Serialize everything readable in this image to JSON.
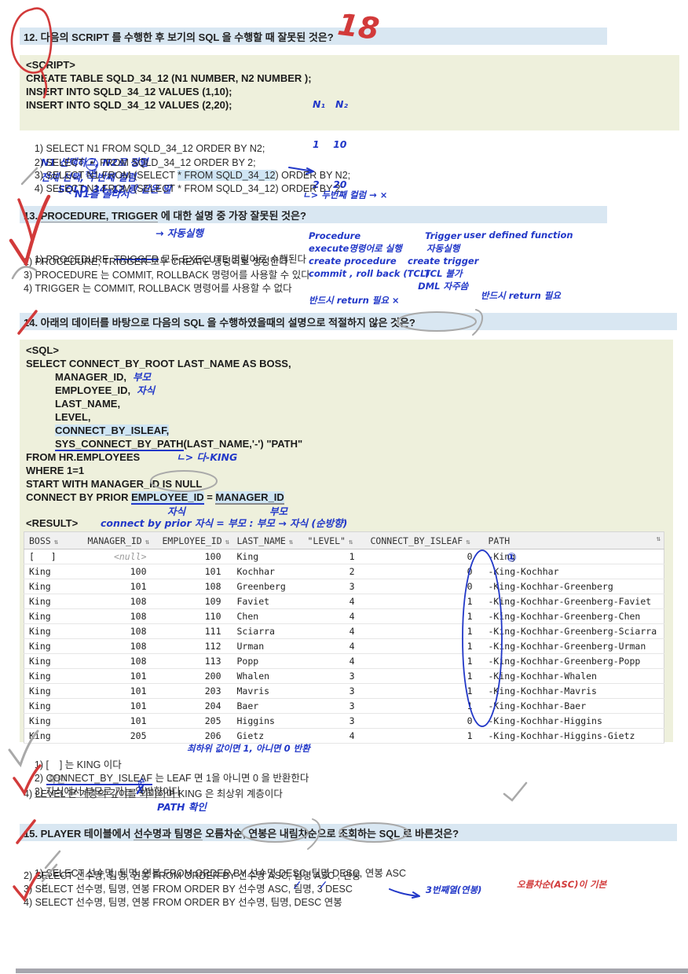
{
  "colors": {
    "pen_blue": "#2238c8",
    "pen_red": "#d23a3a",
    "pencil": "#9e9e9e",
    "header_bar": "#d9e7f2",
    "code_bg": "#eef0dc",
    "highlight": "#cfe5f4"
  },
  "q12": {
    "title": "12. 다음의 SCRIPT 를 수행한 후 보기의 SQL 을 수행할 때 잘못된 것은?",
    "mark18": "18",
    "script": {
      "tag": "<SCRIPT>",
      "l1": "CREATE TABLE SQLD_34_12 (N1 NUMBER, N2 NUMBER );",
      "l2": "INSERT INTO SQLD_34_12 VALUES (1,10);",
      "l3": "INSERT INTO SQLD_34_12 VALUES (2,20);"
    },
    "hand_table": {
      "r1": "N₁   N₂",
      "r2": "1    10",
      "r3": "2    20"
    },
    "opt1": {
      "text": "1) SELECT N1 FROM SQLD_34_12 ORDER BY N2;",
      "note": "N1 선택하고, N2로 정렬"
    },
    "opt2": {
      "pre": "2) SELECT",
      "star": "*",
      "post": "FROM SQLD_34_12 ORDER BY 2;",
      "sub": "전체",
      "note": "전체 선택, 두번째 컬럼"
    },
    "opt3": {
      "pre": "3) SELECT N1 FROM (SELECT ",
      "hl": "* FROM SQLD_34_12",
      "post": ") ORDER BY N2;",
      "note": "SQLD_34_12 랑 같은 말"
    },
    "opt4": {
      "text": "4) SELECT N1 FROM (SELECT * FROM SQLD_34_12) ORDER BY 2;",
      "note1": "N1을 골라서",
      "note2": "ㄴ> 두번째 컬럼 → ×"
    }
  },
  "q13": {
    "t1": "13. ",
    "ul": "PROCEDURE, TRIGGER",
    "t2": " 에 대한 설명 중 가장 잘못된 것은?",
    "auto_note": "→ 자동실행",
    "opt1": {
      "pre": "1) PROCEDURE, ",
      "struck": "TRIGGER",
      "post": " 모두 EXECUTE 명령어로 수행된다"
    },
    "opt2": "2) PROCEDURE, TRIGGER 모두 CREATE 명령어로 생성한다",
    "opt3": "3) PROCEDURE 는 COMMIT, ROLLBACK 명령어를 사용할 수 있다",
    "opt4": "4) TRIGGER 는 COMMIT, ROLLBACK 명령어를 사용할 수 없다",
    "col_procedure": {
      "title": "Procedure",
      "l1": "execute명령어로 실행",
      "l2": "create procedure",
      "l3": "commit , roll back (TCL)"
    },
    "col_trigger": {
      "title": "Trigger",
      "l1": "자동실행",
      "l2": "create trigger",
      "l3": "TCL 불가",
      "l4": "DML 자주씀"
    },
    "col_udf": {
      "title": "user defined function"
    },
    "foot_left": "반드시 return 필요 ×",
    "foot_right": "반드시 return 필요"
  },
  "q14": {
    "title": "14. 아래의 데이터를 바탕으로 다음의 SQL 을 수행하였을때의 설명으로 적절하지 않은 것은?",
    "sql": {
      "tag": "<SQL>",
      "l1": "SELECT CONNECT_BY_ROOT LAST_NAME AS BOSS,",
      "l2": "MANAGER_ID,",
      "l2n": "부모",
      "l3": "EMPLOYEE_ID,",
      "l3n": "자식",
      "l4": "LAST_NAME,",
      "l5": "LEVEL,",
      "l6": "CONNECT_BY_ISLEAF,",
      "l7a": "SYS_CONNECT_BY_PATH",
      "l7b": "(LAST_NAME,'-') \"PATH\"",
      "l8": "FROM HR.EMPLOYEES",
      "l8n": "ㄴ> 다-KING",
      "l9": "WHERE 1=1",
      "l10": "START WITH MANAGER_ID IS NULL",
      "l11a": "CONNECT BY PRIOR ",
      "l11b": "EMPLOYEE_ID",
      "l11c": " = ",
      "l11d": "MANAGER_ID",
      "l11n1": "자식",
      "l11n2": "부모",
      "result": "<RESULT>",
      "result_note": "connect by prior 자식 = 부모  :  부모 → 자식  (순방향)"
    },
    "table": {
      "headers": [
        "BOSS",
        "MANAGER_ID",
        "EMPLOYEE_ID",
        "LAST_NAME",
        "\"LEVEL\"",
        "CONNECT_BY_ISLEAF",
        "PATH"
      ],
      "sort": "⇅",
      "circle": "①",
      "rows": [
        [
          "[   ]",
          "<null>",
          "100",
          "King",
          "1",
          "0",
          "-King"
        ],
        [
          "King",
          "100",
          "101",
          "Kochhar",
          "2",
          "0",
          "-King-Kochhar"
        ],
        [
          "King",
          "101",
          "108",
          "Greenberg",
          "3",
          "0",
          "-King-Kochhar-Greenberg"
        ],
        [
          "King",
          "108",
          "109",
          "Faviet",
          "4",
          "1",
          "-King-Kochhar-Greenberg-Faviet"
        ],
        [
          "King",
          "108",
          "110",
          "Chen",
          "4",
          "1",
          "-King-Kochhar-Greenberg-Chen"
        ],
        [
          "King",
          "108",
          "111",
          "Sciarra",
          "4",
          "1",
          "-King-Kochhar-Greenberg-Sciarra"
        ],
        [
          "King",
          "108",
          "112",
          "Urman",
          "4",
          "1",
          "-King-Kochhar-Greenberg-Urman"
        ],
        [
          "King",
          "108",
          "113",
          "Popp",
          "4",
          "1",
          "-King-Kochhar-Greenberg-Popp"
        ],
        [
          "King",
          "101",
          "200",
          "Whalen",
          "3",
          "1",
          "-King-Kochhar-Whalen"
        ],
        [
          "King",
          "101",
          "203",
          "Mavris",
          "3",
          "1",
          "-King-Kochhar-Mavris"
        ],
        [
          "King",
          "101",
          "204",
          "Baer",
          "3",
          "1",
          "-King-Kochhar-Baer"
        ],
        [
          "King",
          "101",
          "205",
          "Higgins",
          "3",
          "0",
          "-King-Kochhar-Higgins"
        ],
        [
          "King",
          "205",
          "206",
          "Gietz",
          "4",
          "1",
          "-King-Kochhar-Higgins-Gietz"
        ]
      ]
    },
    "opt1": {
      "text": "1) [    ] 는 KING 이다",
      "pencil": "확인",
      "note": "최하위 값이면 1, 아니면 0 반환"
    },
    "opt2": {
      "pre": "2) ",
      "ul": "CONNECT_BY_ISLEAF",
      "post": " 는 LEAF 면 1을 아니면 0 을 반환한다"
    },
    "opt3": {
      "pre": "3) 자식에서 부모로 가는 ",
      "wrong": "역",
      "over": "순",
      "post": "방향이다"
    },
    "opt4": {
      "text": "4) LEVEL 은 계층의 깊이를 의미하며 KING 은 최상위 계층이다",
      "note": "PATH 확인"
    }
  },
  "q15": {
    "t1": "15. PLAYER 테이블에서 ",
    "u1": "선수명과 팀명은",
    "t2": " ",
    "c1": "오름차순",
    "t3": ", 연봉은 ",
    "c2": "내림차순",
    "t4": "으로 조회하는 SQL 로 바른것은?",
    "opt1": {
      "text": "1) SELECT 선수명, 팀명, 연봉 FROM ORDER BY 선수명 DESC, 팀명 DESC, 연봉 ASC",
      "mark": "×"
    },
    "opt2": "2) SELECT 선수명, 팀명, 연봉 FROM ORDER BY 선수명 ASC, 팀명 ASC , 연봉",
    "opt3": {
      "text": "3) SELECT 선수명, 팀명, 연봉 FROM ORDER BY 선수명 ASC, 팀명, 3 DESC",
      "slash": "/",
      "note_blue": "3번째열(연봉)",
      "note_red": "오름차순(ASC)이 기본"
    },
    "opt4": "4) SELECT 선수명, 팀명, 연봉 FROM ORDER BY 선수명, 팀명, DESC 연봉"
  }
}
